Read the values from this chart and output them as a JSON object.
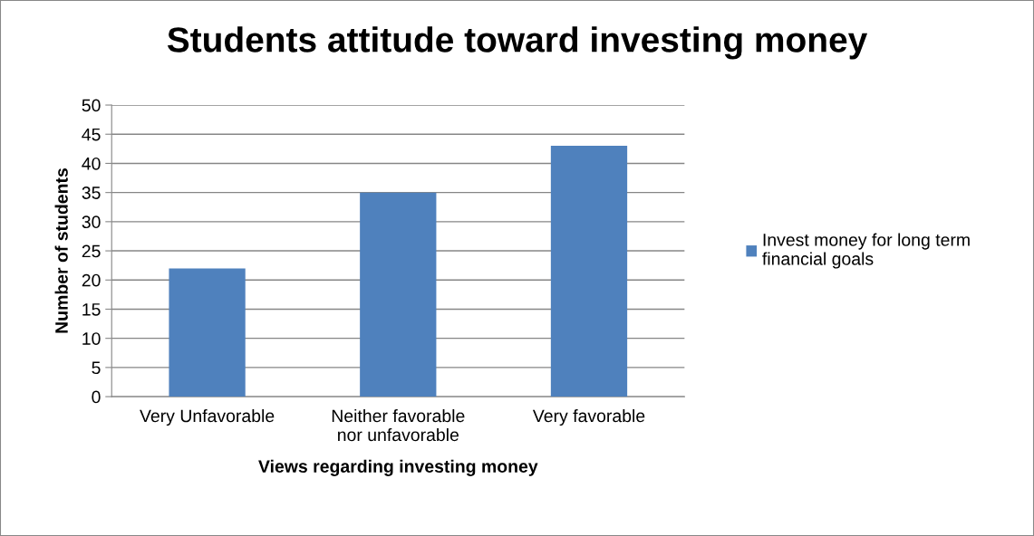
{
  "chart_data": {
    "type": "bar",
    "title": "Students attitude toward investing money",
    "xlabel": "Views regarding investing money",
    "ylabel": "Number of students",
    "categories": [
      "Very Unfavorable",
      "Neither favorable\nnor unfavorable",
      "Very favorable"
    ],
    "series": [
      {
        "name": "Invest money for long term\nfinancial goals",
        "color": "#4f81bd",
        "values": [
          22,
          35,
          43
        ]
      }
    ],
    "ylim": [
      0,
      50
    ],
    "yticks": [
      0,
      5,
      10,
      15,
      20,
      25,
      30,
      35,
      40,
      45,
      50
    ],
    "grid": "y",
    "legend": "right"
  }
}
